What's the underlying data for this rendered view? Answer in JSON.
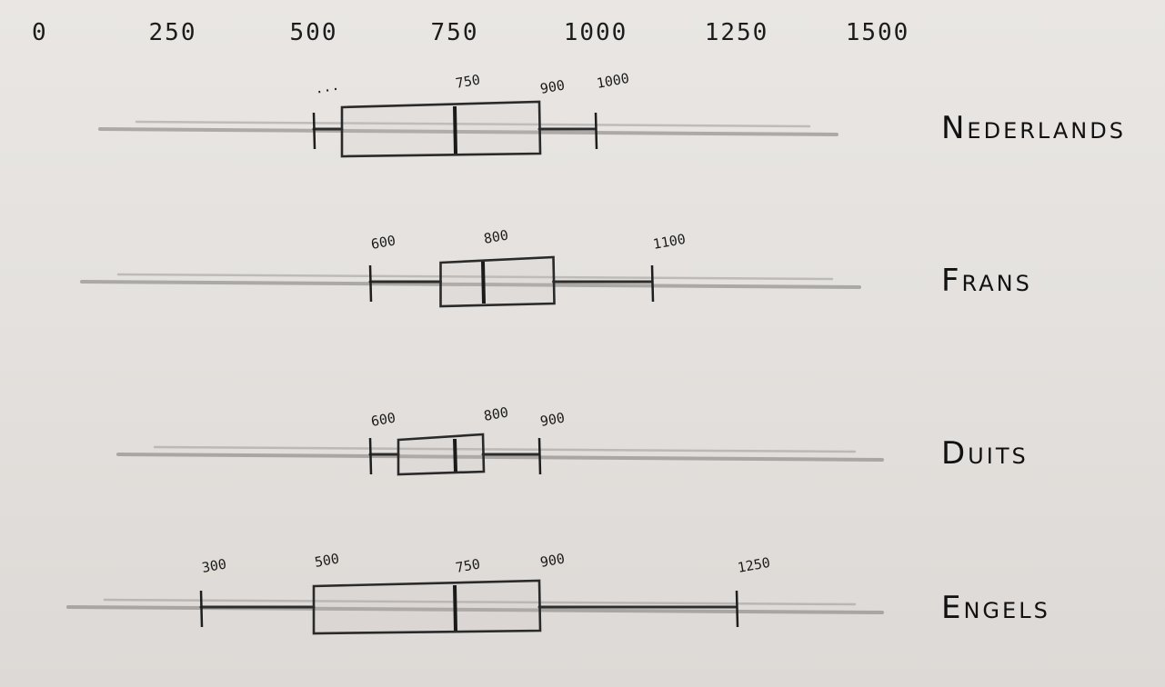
{
  "chart_data": {
    "type": "boxplot",
    "x_ticks": [
      "0",
      "250",
      "500",
      "750",
      "1000",
      "1250",
      "1500"
    ],
    "x_tick_values": [
      0,
      250,
      500,
      750,
      1000,
      1250,
      1500
    ],
    "xlim": [
      0,
      1500
    ],
    "grid": false,
    "series": [
      {
        "name": "Nederlands",
        "whisker_low": 500,
        "q1": 550,
        "median": 750,
        "q3": 900,
        "whisker_high": 1000,
        "labels": [
          {
            "text": "...",
            "value": 500
          },
          {
            "text": "750",
            "value": 750
          },
          {
            "text": "900",
            "value": 900
          },
          {
            "text": "1000",
            "value": 1000
          }
        ]
      },
      {
        "name": "Frans",
        "whisker_low": 600,
        "q1": 725,
        "median": 800,
        "q3": 925,
        "whisker_high": 1100,
        "labels": [
          {
            "text": "600",
            "value": 600
          },
          {
            "text": "800",
            "value": 800
          },
          {
            "text": "1100",
            "value": 1100
          }
        ]
      },
      {
        "name": "Duits",
        "whisker_low": 600,
        "q1": 650,
        "median": 750,
        "q3": 800,
        "whisker_high": 900,
        "labels": [
          {
            "text": "600",
            "value": 600
          },
          {
            "text": "800",
            "value": 800
          },
          {
            "text": "900",
            "value": 900
          }
        ]
      },
      {
        "name": "Engels",
        "whisker_low": 300,
        "q1": 500,
        "median": 750,
        "q3": 900,
        "whisker_high": 1250,
        "labels": [
          {
            "text": "300",
            "value": 300
          },
          {
            "text": "500",
            "value": 500
          },
          {
            "text": "750",
            "value": 750
          },
          {
            "text": "900",
            "value": 900
          },
          {
            "text": "1250",
            "value": 1250
          }
        ]
      }
    ]
  }
}
